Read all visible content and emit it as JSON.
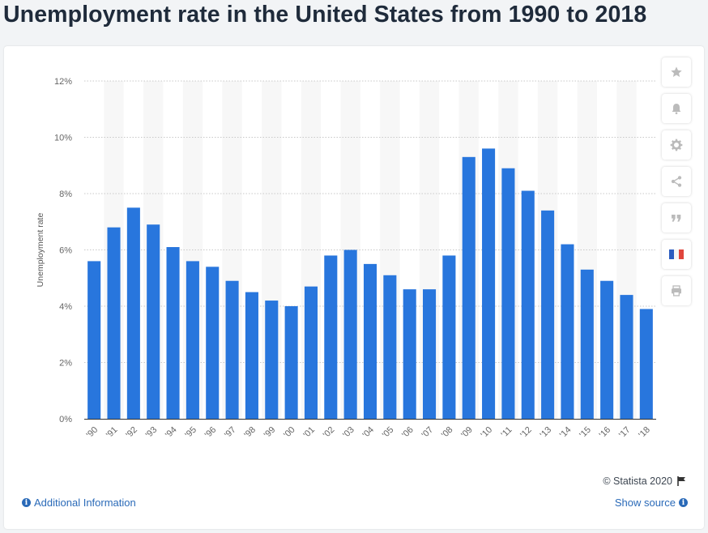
{
  "page": {
    "title": "Unemployment rate in the United States from 1990 to 2018"
  },
  "chart_data": {
    "type": "bar",
    "title": "Unemployment rate in the United States from 1990 to 2018",
    "xlabel": "",
    "ylabel": "Unemployment rate",
    "categories": [
      "'90",
      "'91",
      "'92",
      "'93",
      "'94",
      "'95",
      "'96",
      "'97",
      "'98",
      "'99",
      "'00",
      "'01",
      "'02",
      "'03",
      "'04",
      "'05",
      "'06",
      "'07",
      "'08",
      "'09",
      "'10",
      "'11",
      "'12",
      "'13",
      "'14",
      "'15",
      "'16",
      "'17",
      "'18"
    ],
    "values": [
      5.6,
      6.8,
      7.5,
      6.9,
      6.1,
      5.6,
      5.4,
      4.9,
      4.5,
      4.2,
      4.0,
      4.7,
      5.8,
      6.0,
      5.5,
      5.1,
      4.6,
      4.6,
      5.8,
      9.3,
      9.6,
      8.9,
      8.1,
      7.4,
      6.2,
      5.3,
      4.9,
      4.4,
      3.9
    ],
    "ylim": [
      0,
      12
    ],
    "yticks": [
      "0%",
      "2%",
      "4%",
      "6%",
      "8%",
      "10%",
      "12%"
    ],
    "ytick_values": [
      0,
      2,
      4,
      6,
      8,
      10,
      12
    ],
    "grid": true,
    "legend": "none",
    "bar_color": "#2876dd",
    "band_color": "#f7f7f7"
  },
  "toolbar": {
    "buttons": [
      {
        "name": "favorite-button",
        "icon": "star-icon"
      },
      {
        "name": "notification-button",
        "icon": "bell-icon"
      },
      {
        "name": "settings-button",
        "icon": "gear-icon"
      },
      {
        "name": "share-button",
        "icon": "share-icon"
      },
      {
        "name": "cite-button",
        "icon": "quote-icon"
      },
      {
        "name": "language-button",
        "icon": "french-flag-icon"
      },
      {
        "name": "print-button",
        "icon": "printer-icon"
      }
    ],
    "icon_color": "#bbbbbb"
  },
  "footer": {
    "credit": "© Statista 2020",
    "additional_info": "Additional Information",
    "show_source": "Show source"
  }
}
